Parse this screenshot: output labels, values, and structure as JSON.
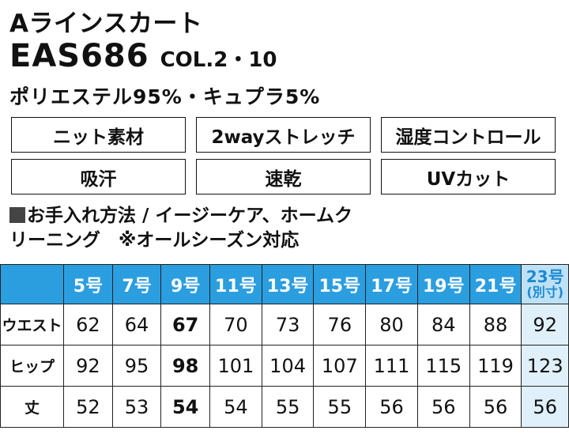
{
  "product": {
    "title": "Aラインスカート",
    "code": "EAS686",
    "colors": "COL.2・10",
    "material": "ポリエステル95%・キュプラ5%"
  },
  "features": [
    "ニット素材",
    "2wayストレッチ",
    "湿度コントロール",
    "吸汗",
    "速乾",
    "UVカット"
  ],
  "care": {
    "line1": "お手入れ方法 / イージーケア、ホームク",
    "line2": "リーニング　※オールシーズン対応"
  },
  "size_table": {
    "headers": [
      "5号",
      "7号",
      "9号",
      "11号",
      "13号",
      "15号",
      "17号",
      "19号",
      "21号"
    ],
    "special_header": "23号",
    "special_note": "(別寸)",
    "rows": [
      {
        "label": "ウエスト",
        "values": [
          "62",
          "64",
          "67",
          "70",
          "73",
          "76",
          "80",
          "84",
          "88"
        ],
        "special": "92"
      },
      {
        "label": "ヒップ",
        "values": [
          "92",
          "95",
          "98",
          "101",
          "104",
          "107",
          "111",
          "115",
          "119"
        ],
        "special": "123"
      },
      {
        "label": "丈",
        "values": [
          "52",
          "53",
          "54",
          "54",
          "55",
          "55",
          "56",
          "56",
          "56"
        ],
        "special": "56"
      }
    ]
  },
  "colors_used": {
    "header_blue": "#2b9ee0",
    "special_header": "#bfe1f5",
    "special_cell": "#dff0fb"
  }
}
